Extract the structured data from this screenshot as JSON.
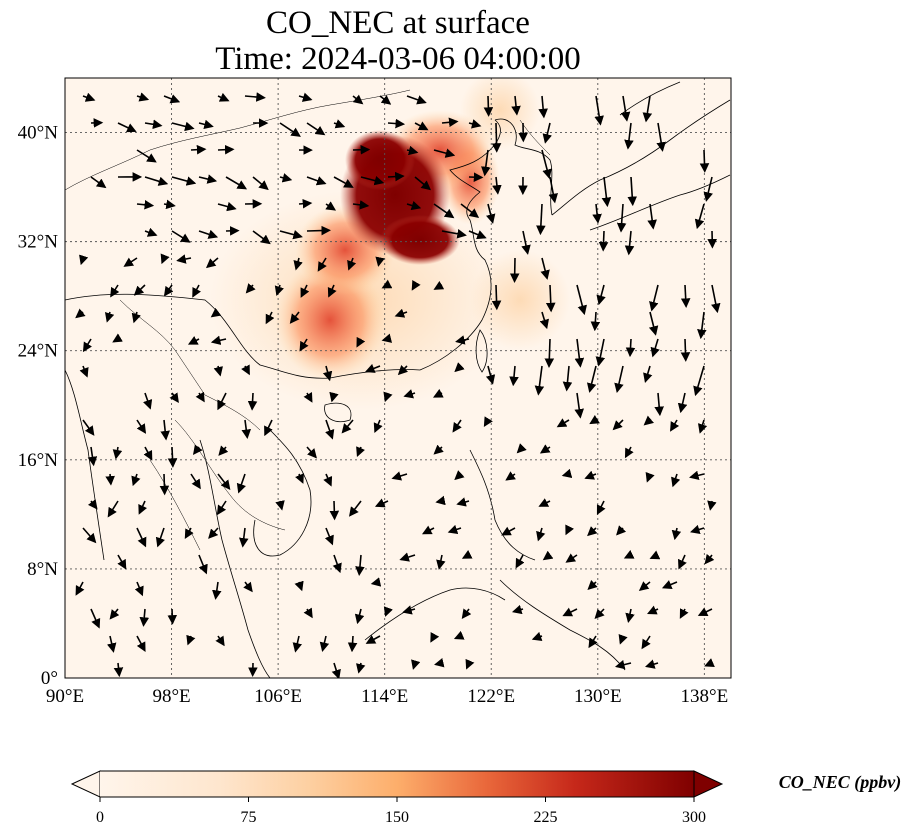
{
  "title": {
    "line1": "CO_NEC at surface",
    "line2": "Time: 2024-03-06 04:00:00"
  },
  "map": {
    "lon_range": [
      90,
      140
    ],
    "lat_range": [
      0,
      44
    ],
    "lon_ticks": [
      "90°E",
      "98°E",
      "106°E",
      "114°E",
      "122°E",
      "130°E",
      "138°E"
    ],
    "lat_ticks": [
      "0°",
      "8°N",
      "16°N",
      "24°N",
      "32°N",
      "40°N"
    ],
    "gridlines": true,
    "variable": "CO_NEC",
    "level": "surface",
    "overlay": "wind vectors"
  },
  "colorbar": {
    "label": "CO_NEC (ppbv)",
    "min": 0,
    "max": 300,
    "ticks": [
      "0",
      "75",
      "150",
      "225",
      "300"
    ],
    "extend": "both",
    "colormap": [
      "#fff5eb",
      "#fdd8b0",
      "#fdae6b",
      "#f16913",
      "#d94801",
      "#a63603",
      "#7f0000"
    ]
  }
}
